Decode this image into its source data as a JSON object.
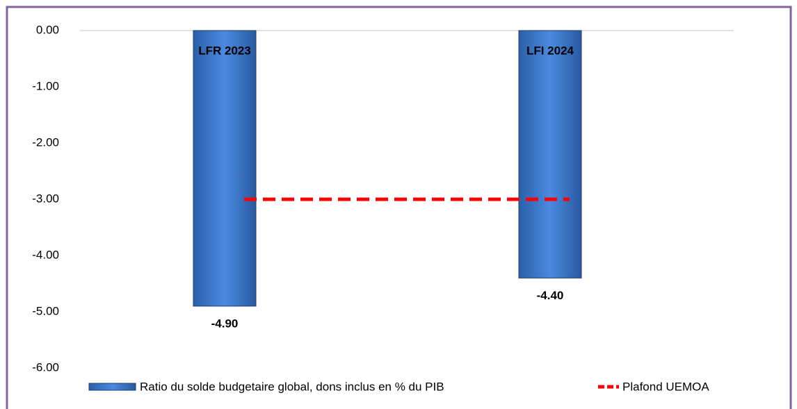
{
  "chart_data": {
    "type": "bar",
    "categories": [
      "LFR 2023",
      "LFI 2024"
    ],
    "series": [
      {
        "name": "Ratio du solde budgetaire global, dons inclus en % du PIB",
        "type": "bar",
        "color": "#3b78c9",
        "values": [
          -4.9,
          -4.4
        ],
        "value_labels": [
          "-4.90",
          "-4.40"
        ]
      },
      {
        "name": "Plafond UEMOA",
        "type": "line",
        "color": "#ff0000",
        "values": [
          -3,
          -3
        ]
      }
    ],
    "ylim": [
      -6,
      0
    ],
    "yticks": [
      {
        "value": 0,
        "label": "0.00"
      },
      {
        "value": -1,
        "label": "-1.00"
      },
      {
        "value": -2,
        "label": "-2.00"
      },
      {
        "value": -3,
        "label": "-3.00"
      },
      {
        "value": -4,
        "label": "-4.00"
      },
      {
        "value": -5,
        "label": "-5.00"
      },
      {
        "value": -6,
        "label": "-6.00"
      }
    ],
    "grid": false
  }
}
